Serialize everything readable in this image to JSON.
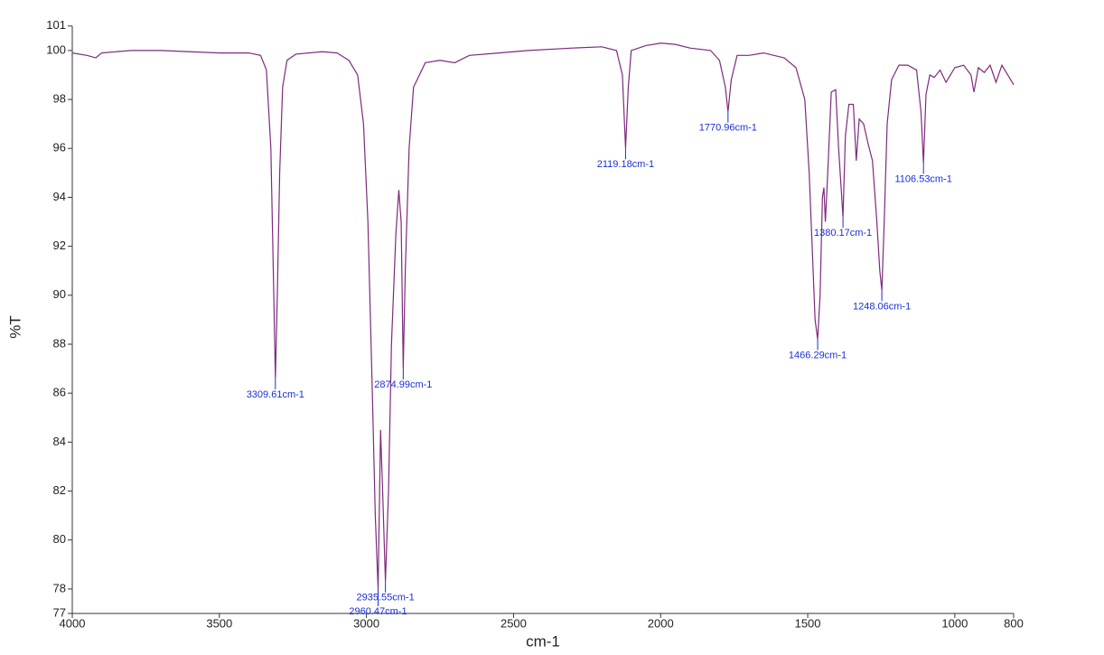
{
  "chart_data": {
    "type": "line",
    "x_label": "cm-1",
    "y_label": "%T",
    "color": "#7d2a7d",
    "annotation_color": "#1a2fd6",
    "x": [
      4000,
      3950,
      3920,
      3900,
      3800,
      3700,
      3600,
      3500,
      3400,
      3360,
      3340,
      3325,
      3315,
      3309.61,
      3303,
      3295,
      3285,
      3270,
      3240,
      3150,
      3100,
      3060,
      3030,
      3010,
      2995,
      2980,
      2970,
      2960.47,
      2952,
      2945,
      2935.55,
      2925,
      2915,
      2900,
      2890,
      2882,
      2874.99,
      2868,
      2855,
      2840,
      2800,
      2750,
      2700,
      2650,
      2550,
      2450,
      2300,
      2200,
      2150,
      2130,
      2119.18,
      2110,
      2100,
      2050,
      2000,
      1950,
      1900,
      1830,
      1800,
      1780,
      1770.96,
      1760,
      1740,
      1700,
      1650,
      1580,
      1540,
      1510,
      1495,
      1485,
      1475,
      1466.29,
      1458,
      1450,
      1445,
      1440,
      1432,
      1420,
      1405,
      1395,
      1380.17,
      1372,
      1360,
      1345,
      1335,
      1325,
      1310,
      1295,
      1280,
      1265,
      1255,
      1248.06,
      1240,
      1230,
      1215,
      1190,
      1160,
      1130,
      1115,
      1106.53,
      1098,
      1085,
      1070,
      1050,
      1030,
      1000,
      970,
      945,
      935,
      920,
      900,
      880,
      860,
      840,
      820,
      800
    ],
    "values": [
      99.9,
      99.8,
      99.7,
      99.9,
      100.0,
      100.0,
      99.95,
      99.9,
      99.9,
      99.8,
      99.2,
      96,
      90,
      86.6,
      90,
      95,
      98.5,
      99.6,
      99.85,
      99.95,
      99.9,
      99.6,
      99.0,
      97,
      93,
      86,
      81,
      78,
      84.5,
      82,
      78.3,
      82,
      88,
      92.5,
      94.3,
      93,
      87.0,
      91,
      96,
      98.5,
      99.5,
      99.6,
      99.5,
      99.8,
      99.9,
      100.0,
      100.1,
      100.15,
      100.0,
      99.0,
      96.0,
      98.5,
      100.0,
      100.2,
      100.3,
      100.25,
      100.1,
      100.0,
      99.6,
      98.5,
      97.5,
      98.8,
      99.8,
      99.8,
      99.9,
      99.7,
      99.3,
      98,
      95,
      92,
      89,
      88.2,
      90,
      94,
      94.4,
      93,
      95,
      98.3,
      98.4,
      96,
      93.2,
      96.5,
      97.8,
      97.8,
      95.5,
      97.2,
      97.0,
      96.2,
      95.5,
      93,
      91,
      90.2,
      93,
      97,
      98.8,
      99.4,
      99.4,
      99.2,
      97.5,
      95.4,
      98.2,
      99.0,
      98.9,
      99.2,
      98.7,
      99.3,
      99.4,
      99.0,
      98.3,
      99.3,
      99.1,
      99.4,
      98.7,
      99.4,
      99.0,
      98.6
    ],
    "xlim": [
      4000,
      800
    ],
    "ylim": [
      77,
      101
    ],
    "xticks": [
      4000,
      3500,
      3000,
      2500,
      2000,
      1500,
      1000,
      800
    ],
    "yticks": [
      77,
      78,
      80,
      82,
      84,
      86,
      88,
      90,
      92,
      94,
      96,
      98,
      100,
      101
    ],
    "annotations": [
      {
        "text": "3309.61cm-1",
        "x": 3309.61,
        "y": 86.6
      },
      {
        "text": "2960.47cm-1",
        "x": 2960.47,
        "y": 78
      },
      {
        "text": "2935.55cm-1",
        "x": 2935.55,
        "y": 78.3
      },
      {
        "text": "2874.99cm-1",
        "x": 2874.99,
        "y": 87.0
      },
      {
        "text": "2119.18cm-1",
        "x": 2119.18,
        "y": 96.0
      },
      {
        "text": "1770.96cm-1",
        "x": 1770.96,
        "y": 97.5
      },
      {
        "text": "1466.29cm-1",
        "x": 1466.29,
        "y": 88.2
      },
      {
        "text": "1380.17cm-1",
        "x": 1380.17,
        "y": 93.2
      },
      {
        "text": "1248.06cm-1",
        "x": 1248.06,
        "y": 90.2
      },
      {
        "text": "1106.53cm-1",
        "x": 1106.53,
        "y": 95.4
      }
    ]
  }
}
